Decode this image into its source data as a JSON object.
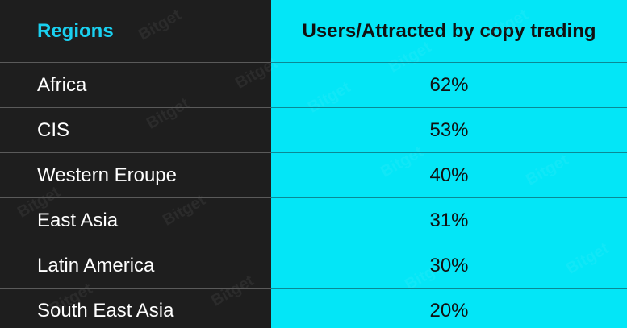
{
  "table": {
    "header": [
      "Regions",
      "Users/Attracted by copy trading"
    ],
    "rows": [
      [
        "Africa",
        "62%"
      ],
      [
        "CIS",
        "53%"
      ],
      [
        "Western Eroupe",
        "40%"
      ],
      [
        "East Asia",
        "31%"
      ],
      [
        "Latin America",
        "30%"
      ],
      [
        "South East Asia",
        "20%"
      ]
    ]
  },
  "watermark": "Bitget"
}
